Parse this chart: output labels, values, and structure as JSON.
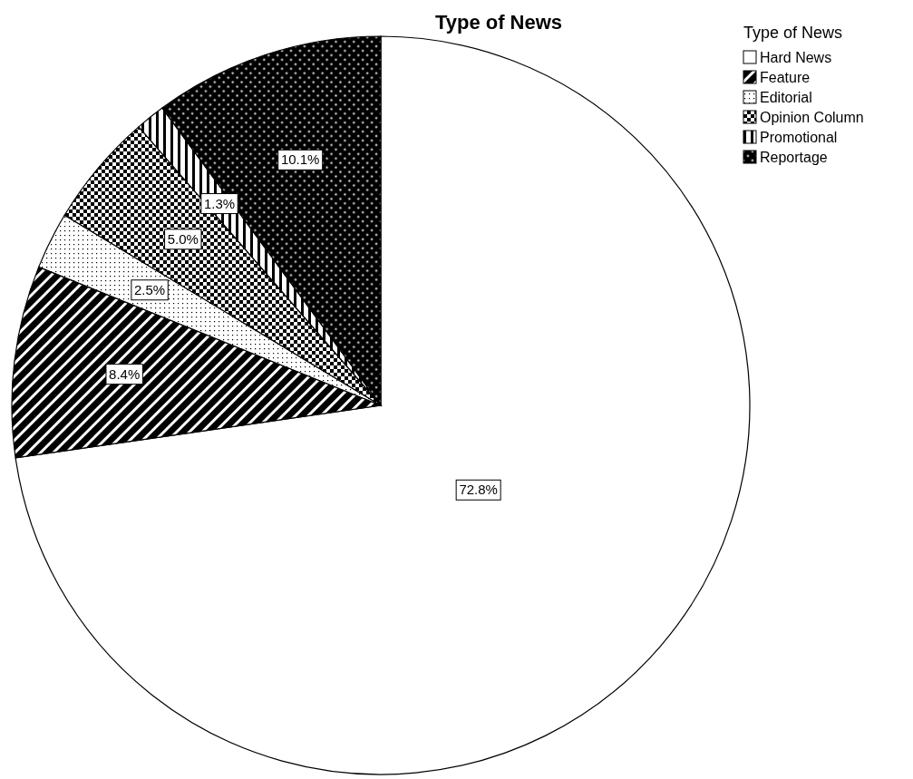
{
  "chart_data": {
    "type": "pie",
    "title": "Type of News",
    "legend_title": "Type of News",
    "categories": [
      "Hard News",
      "Feature",
      "Editorial",
      "Opinion Column",
      "Promotional",
      "Reportage"
    ],
    "values": [
      72.8,
      8.4,
      2.5,
      5.0,
      1.3,
      10.1
    ],
    "value_labels": [
      "72.8%",
      "8.4%",
      "2.5%",
      "5.0%",
      "1.3%",
      "10.1%"
    ],
    "colors": [
      "#ffffff",
      "#000000",
      "#000000",
      "#000000",
      "#000000",
      "#000000"
    ],
    "legend": "top right"
  }
}
